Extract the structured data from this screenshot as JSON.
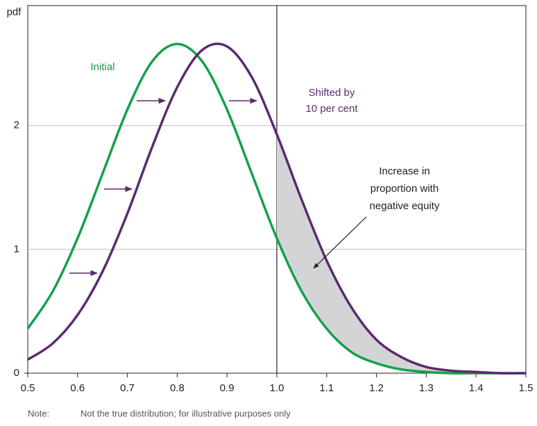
{
  "chart_data": {
    "type": "line",
    "y_label": "pdf",
    "x": [
      0.5,
      0.55,
      0.6,
      0.65,
      0.7,
      0.75,
      0.8,
      0.85,
      0.9,
      0.95,
      1.0,
      1.05,
      1.1,
      1.15,
      1.2,
      1.25,
      1.3,
      1.35,
      1.4,
      1.45,
      1.5
    ],
    "series": [
      {
        "name": "Initial",
        "color": "#13a14b",
        "values": [
          0.36,
          0.66,
          1.09,
          1.61,
          2.13,
          2.52,
          2.66,
          2.52,
          2.13,
          1.61,
          1.09,
          0.66,
          0.36,
          0.17,
          0.08,
          0.03,
          0.01,
          0,
          0,
          0,
          0
        ]
      },
      {
        "name": "Shifted by 10 per cent",
        "color": "#5b2a6e",
        "values": [
          0.11,
          0.24,
          0.47,
          0.82,
          1.29,
          1.83,
          2.31,
          2.61,
          2.64,
          2.39,
          1.93,
          1.4,
          0.91,
          0.53,
          0.27,
          0.13,
          0.05,
          0.02,
          0.01,
          0,
          0
        ]
      }
    ],
    "xlim": [
      0.5,
      1.5
    ],
    "ylim": [
      0,
      2.97
    ],
    "xticks": [
      0.5,
      0.6,
      0.7,
      0.8,
      0.9,
      {
        "value": 1,
        "label": "1.0"
      },
      1.1,
      1.2,
      1.3,
      1.4,
      1.5
    ],
    "yticks": [
      0,
      1,
      2
    ],
    "grid": true,
    "vline": {
      "value": 1,
      "label": "1.0"
    },
    "series_labels": [
      [
        "Initial"
      ],
      [
        "Shifted by",
        "10 per cent"
      ]
    ],
    "annotation": [
      "Increase in",
      "proportion with",
      "negative equity"
    ],
    "note": {
      "label": "Note:",
      "text": "Not the true distribution; for illustrative purposes only"
    }
  }
}
